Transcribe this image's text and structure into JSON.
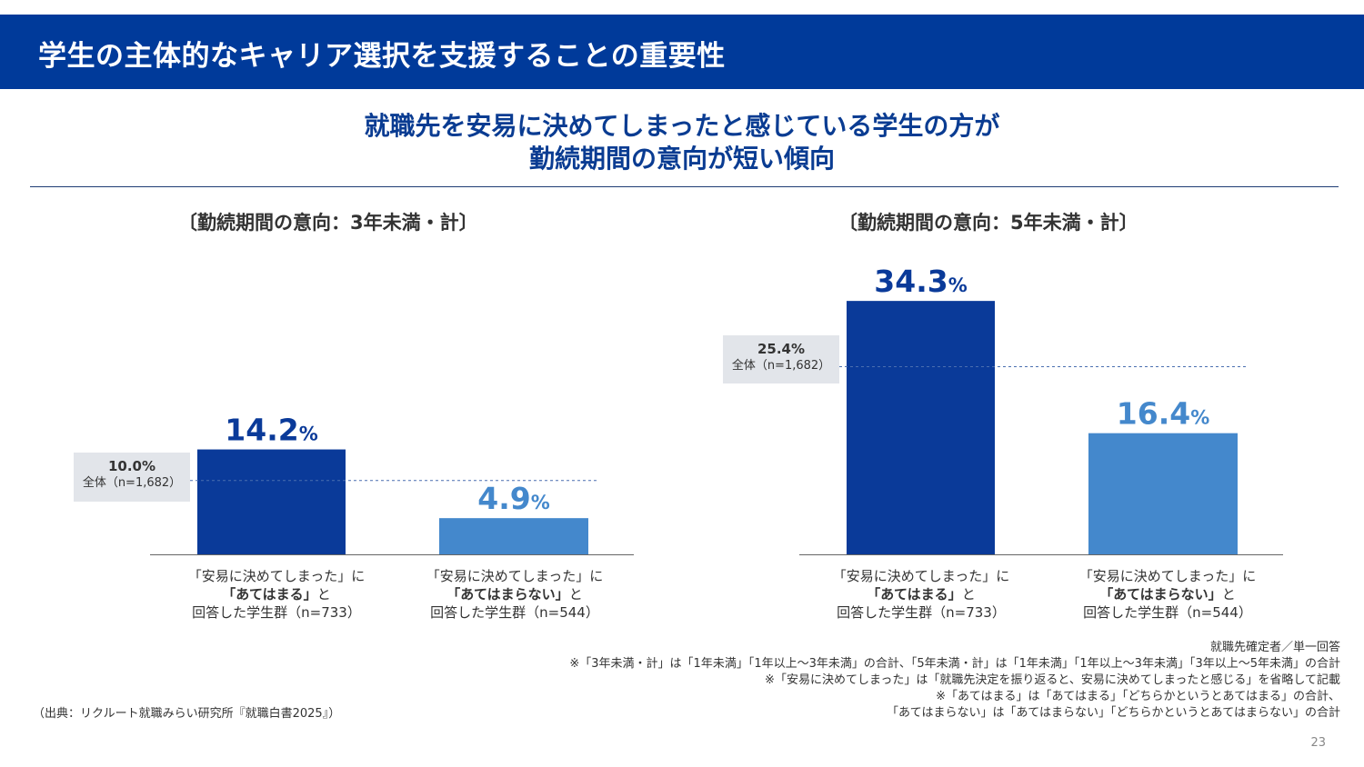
{
  "header": {
    "title": "学生の主体的なキャリア選択を支援することの重要性"
  },
  "headline": {
    "line1": "就職先を安易に決めてしまったと感じている学生の方が",
    "line2": "勤続期間の意向が短い傾向"
  },
  "categories": [
    {
      "line1": "「安易に決めてしまった」に",
      "line2_bold": "「あてはまる」",
      "line2_suffix": "と",
      "line3": "回答した学生群（n=733）"
    },
    {
      "line1": "「安易に決めてしまった」に",
      "line2_bold": "「あてはまらない」",
      "line2_suffix": "と",
      "line3": "回答した学生群（n=544）"
    }
  ],
  "chart_data": [
    {
      "type": "bar",
      "title": "〔勤続期間の意向：3年未満・計〕",
      "categories": [
        "「安易に決めてしまった」に「あてはまる」と回答した学生群（n=733）",
        "「安易に決めてしまった」に「あてはまらない」と回答した学生群（n=544）"
      ],
      "values": [
        14.2,
        4.9
      ],
      "value_labels": [
        "14.2",
        "4.9"
      ],
      "unit": "%",
      "reference_line": {
        "value": 10.0,
        "label": "10.0%",
        "note": "全体（n=1,682）"
      },
      "ylim": [
        0,
        40
      ],
      "colors": [
        "#0a3a99",
        "#4488cc"
      ]
    },
    {
      "type": "bar",
      "title": "〔勤続期間の意向：5年未満・計〕",
      "categories": [
        "「安易に決めてしまった」に「あてはまる」と回答した学生群（n=733）",
        "「安易に決めてしまった」に「あてはまらない」と回答した学生群（n=544）"
      ],
      "values": [
        34.3,
        16.4
      ],
      "value_labels": [
        "34.3",
        "16.4"
      ],
      "unit": "%",
      "reference_line": {
        "value": 25.4,
        "label": "25.4%",
        "note": "全体（n=1,682）"
      },
      "ylim": [
        0,
        40
      ],
      "colors": [
        "#0a3a99",
        "#4488cc"
      ]
    }
  ],
  "notes": [
    "就職先確定者／単一回答",
    "※「3年未満・計」は「1年未満」「1年以上〜3年未満」の合計、「5年未満・計」は「1年未満」「1年以上〜3年未満」「3年以上〜5年未満」の合計",
    "※「安易に決めてしまった」は「就職先決定を振り返ると、安易に決めてしまったと感じる」を省略して記載",
    "※「あてはまる」は「あてはまる」「どちらかというとあてはまる」の合計、",
    "「あてはまらない」は「あてはまらない」「どちらかというとあてはまらない」の合計"
  ],
  "source": "（出典：リクルート就職みらい研究所『就職白書2025』）",
  "page_number": "23",
  "colors": {
    "header": "#003a9a",
    "bar_dark": "#0a3a99",
    "bar_light": "#4488cc",
    "label_dark": "#0a3a99",
    "label_light": "#4488cc",
    "ref_line": "#4a6fb0",
    "avg_box": "#e2e5ea"
  }
}
